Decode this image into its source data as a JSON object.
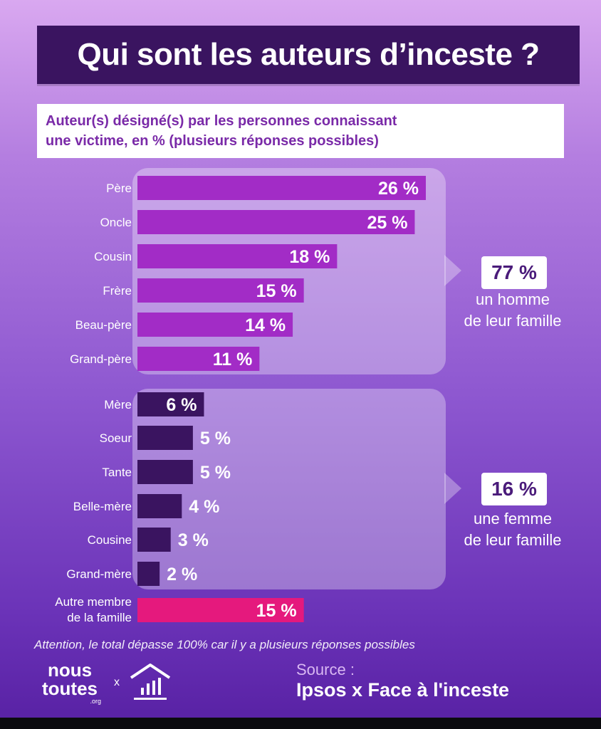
{
  "title": "Qui sont les auteurs d’inceste ?",
  "subtitle": {
    "line1": "Auteur(s) désigné(s) par les personnes connaissant",
    "line2": "une victime, en % (plusieurs réponses possibles)"
  },
  "chart_data": {
    "type": "bar",
    "orientation": "horizontal",
    "title": "Qui sont les auteurs d’inceste ?",
    "xlabel": "",
    "ylabel": "",
    "unit": "%",
    "xlim": [
      0,
      30
    ],
    "categories": [
      "Père",
      "Oncle",
      "Cousin",
      "Frère",
      "Beau-père",
      "Grand-père",
      "Mère",
      "Soeur",
      "Tante",
      "Belle-mère",
      "Cousine",
      "Grand-mère",
      "Autre membre de la famille"
    ],
    "values": [
      26,
      25,
      18,
      15,
      14,
      11,
      6,
      5,
      5,
      4,
      3,
      2,
      15
    ],
    "value_labels": [
      "26 %",
      "25 %",
      "18 %",
      "15 %",
      "14 %",
      "11 %",
      "6 %",
      "5 %",
      "5 %",
      "4 %",
      "3 %",
      "2 %",
      "15 %"
    ],
    "groups": [
      "homme",
      "homme",
      "homme",
      "homme",
      "homme",
      "homme",
      "femme",
      "femme",
      "femme",
      "femme",
      "femme",
      "femme",
      "autre"
    ],
    "colors": {
      "homme": "#a22cc6",
      "femme": "#3a1460",
      "autre": "#e5197d"
    }
  },
  "callouts": {
    "men": {
      "value": "77 %",
      "line1": "un homme",
      "line2": "de leur famille"
    },
    "women": {
      "value": "16 %",
      "line1": "une femme",
      "line2": "de leur famille"
    }
  },
  "note": "Attention, le total dépasse 100% car il y a plusieurs réponses possibles",
  "footer": {
    "logo_line1": "nous",
    "logo_line2": "toutes",
    "logo_org": ".org",
    "separator": "x",
    "source_label": "Source :",
    "source_name": "Ipsos x Face à l'inceste",
    "icon": "bank-chart-icon"
  }
}
